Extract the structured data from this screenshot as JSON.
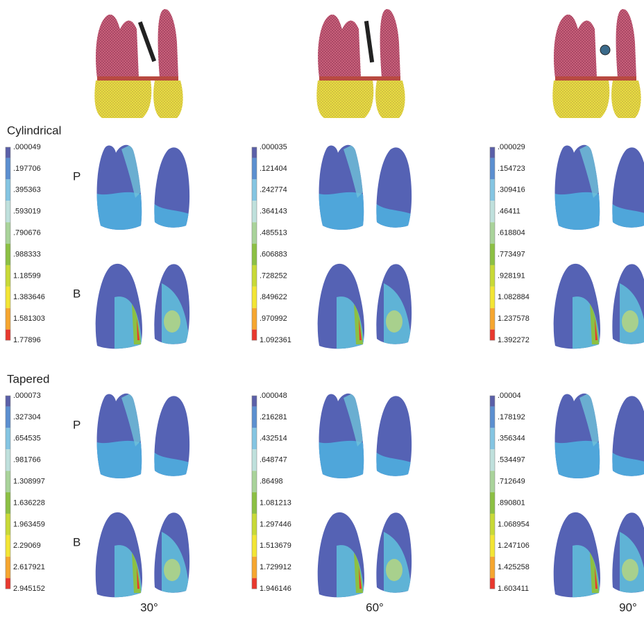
{
  "rows": [
    {
      "title": "Cylindrical",
      "panels": [
        {
          "scale": [
            ".000049",
            ".197706",
            ".395363",
            ".593019",
            ".790676",
            ".988333",
            "1.18599",
            "1.383646",
            "1.581303",
            "1.77896"
          ]
        },
        {
          "scale": [
            ".000035",
            ".121404",
            ".242774",
            ".364143",
            ".485513",
            ".606883",
            ".728252",
            ".849622",
            ".970992",
            "1.092361"
          ]
        },
        {
          "scale": [
            ".000029",
            ".154723",
            ".309416",
            ".46411",
            ".618804",
            ".773497",
            ".928191",
            "1.082884",
            "1.237578",
            "1.392272"
          ]
        }
      ]
    },
    {
      "title": "Tapered",
      "panels": [
        {
          "scale": [
            ".000073",
            ".327304",
            ".654535",
            ".981766",
            "1.308997",
            "1.636228",
            "1.963459",
            "2.29069",
            "2.617921",
            "2.945152"
          ]
        },
        {
          "scale": [
            ".000048",
            ".216281",
            ".432514",
            ".648747",
            ".86498",
            "1.081213",
            "1.297446",
            "1.513679",
            "1.729912",
            "1.946146"
          ]
        },
        {
          "scale": [
            ".00004",
            ".178192",
            ".356344",
            ".534497",
            ".712649",
            ".890801",
            "1.068954",
            "1.247106",
            "1.425258",
            "1.603411"
          ]
        }
      ]
    }
  ],
  "side_labels": [
    "P",
    "B"
  ],
  "columns": [
    "30°",
    "60°",
    "90°"
  ]
}
